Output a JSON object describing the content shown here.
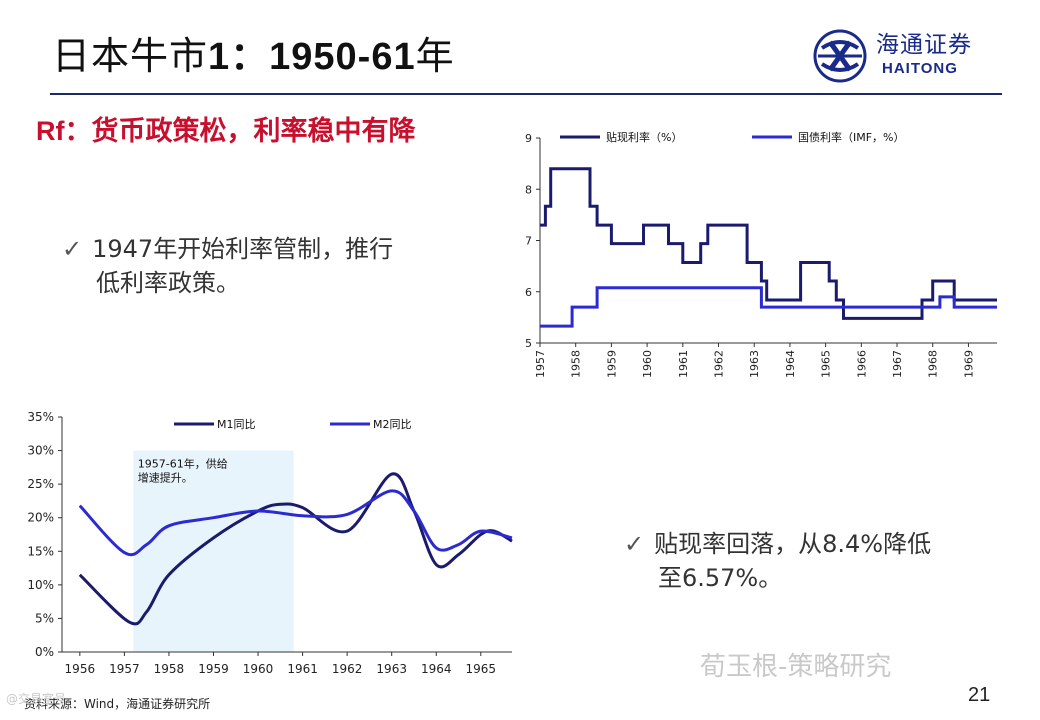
{
  "slide": {
    "title_cn": "日本牛市",
    "title_bold": "1：1950-61",
    "title_end": "年",
    "subtitle_rf": "Rf",
    "subtitle_rest": "：货币政策松，利率稳中有降",
    "bullet1_line1": "1947年开始利率管制，推行",
    "bullet1_line2": "低利率政策。",
    "bullet2_line1": "贴现率回落，从8.4%降低",
    "bullet2_line2": "至6.57%。",
    "check": "✓",
    "source": "资料来源：Wind，海通证券研究所",
    "page_number": "21",
    "watermark": "荀玉根-策略研究",
    "watermark_small": "@交易室号"
  },
  "logo": {
    "cn": "海通证券",
    "en": "HAITONG",
    "icon": "haitong-logo-icon",
    "color": "#1a2a8a"
  },
  "colors": {
    "accent_red": "#c8102e",
    "navy": "#1b1b6e",
    "blue": "#2b2bd0",
    "shade": "#e8f4fb"
  },
  "chart_data": [
    {
      "type": "line",
      "title": "",
      "x_ticks": [
        "1957",
        "1958",
        "1959",
        "1960",
        "1961",
        "1962",
        "1963",
        "1964",
        "1965",
        "1966",
        "1967",
        "1968",
        "1969"
      ],
      "xlim": [
        1957,
        1969.8
      ],
      "ylim": [
        5,
        9
      ],
      "y_ticks": [
        "5",
        "6",
        "7",
        "8",
        "9"
      ],
      "legend_position": "top",
      "series": [
        {
          "name": "贴现利率（%）",
          "color": "#1b1b6e",
          "points": [
            [
              1957.0,
              7.3
            ],
            [
              1957.15,
              7.3
            ],
            [
              1957.15,
              7.67
            ],
            [
              1957.3,
              7.67
            ],
            [
              1957.3,
              8.4
            ],
            [
              1958.4,
              8.4
            ],
            [
              1958.4,
              7.67
            ],
            [
              1958.6,
              7.67
            ],
            [
              1958.6,
              7.3
            ],
            [
              1959.0,
              7.3
            ],
            [
              1959.0,
              6.94
            ],
            [
              1959.9,
              6.94
            ],
            [
              1959.9,
              7.3
            ],
            [
              1960.6,
              7.3
            ],
            [
              1960.6,
              6.94
            ],
            [
              1961.0,
              6.94
            ],
            [
              1961.0,
              6.57
            ],
            [
              1961.5,
              6.57
            ],
            [
              1961.5,
              6.94
            ],
            [
              1961.7,
              6.94
            ],
            [
              1961.7,
              7.3
            ],
            [
              1962.8,
              7.3
            ],
            [
              1962.8,
              6.57
            ],
            [
              1963.2,
              6.57
            ],
            [
              1963.2,
              6.21
            ],
            [
              1963.35,
              6.21
            ],
            [
              1963.35,
              5.84
            ],
            [
              1964.3,
              5.84
            ],
            [
              1964.3,
              6.57
            ],
            [
              1965.1,
              6.57
            ],
            [
              1965.1,
              6.21
            ],
            [
              1965.3,
              6.21
            ],
            [
              1965.3,
              5.84
            ],
            [
              1965.5,
              5.84
            ],
            [
              1965.5,
              5.48
            ],
            [
              1967.7,
              5.48
            ],
            [
              1967.7,
              5.84
            ],
            [
              1968.0,
              5.84
            ],
            [
              1968.0,
              6.21
            ],
            [
              1968.6,
              6.21
            ],
            [
              1968.6,
              5.84
            ],
            [
              1969.8,
              5.84
            ]
          ]
        },
        {
          "name": "国债利率（IMF，%）",
          "color": "#2b2bd0",
          "points": [
            [
              1957.0,
              5.33
            ],
            [
              1957.9,
              5.33
            ],
            [
              1957.9,
              5.7
            ],
            [
              1958.6,
              5.7
            ],
            [
              1958.6,
              6.08
            ],
            [
              1963.2,
              6.08
            ],
            [
              1963.2,
              5.7
            ],
            [
              1968.2,
              5.7
            ],
            [
              1968.2,
              5.9
            ],
            [
              1968.6,
              5.9
            ],
            [
              1968.6,
              5.7
            ],
            [
              1969.8,
              5.7
            ]
          ]
        }
      ]
    },
    {
      "type": "line",
      "title": "",
      "x_ticks": [
        "1956",
        "1957",
        "1958",
        "1959",
        "1960",
        "1961",
        "1962",
        "1963",
        "1964",
        "1965"
      ],
      "xlim": [
        1955.6,
        1965.7
      ],
      "ylim": [
        0,
        35
      ],
      "y_ticks": [
        "0%",
        "5%",
        "10%",
        "15%",
        "20%",
        "25%",
        "30%",
        "35%"
      ],
      "legend_position": "top",
      "annotation": "1957-61年，供给增速提升。",
      "annotation_line1": "1957-61年，供给",
      "annotation_line2": "增速提升。",
      "shaded_range": [
        1957.2,
        1960.8
      ],
      "series": [
        {
          "name": "M1同比",
          "color": "#1b1b6e",
          "points": [
            [
              1956.0,
              11.5
            ],
            [
              1957.1,
              4.5
            ],
            [
              1957.5,
              6.0
            ],
            [
              1958.0,
              11.5
            ],
            [
              1959.0,
              17.0
            ],
            [
              1960.0,
              21.0
            ],
            [
              1960.5,
              22.0
            ],
            [
              1961.0,
              21.5
            ],
            [
              1962.0,
              18.0
            ],
            [
              1963.0,
              26.5
            ],
            [
              1963.5,
              21.0
            ],
            [
              1964.0,
              13.0
            ],
            [
              1964.5,
              14.5
            ],
            [
              1965.0,
              17.5
            ],
            [
              1965.3,
              18.0
            ],
            [
              1965.7,
              16.5
            ]
          ]
        },
        {
          "name": "M2同比",
          "color": "#2b2bd0",
          "points": [
            [
              1956.0,
              21.8
            ],
            [
              1957.0,
              14.8
            ],
            [
              1957.5,
              16.0
            ],
            [
              1958.0,
              18.8
            ],
            [
              1959.0,
              20.0
            ],
            [
              1960.0,
              21.0
            ],
            [
              1961.0,
              20.3
            ],
            [
              1962.0,
              20.5
            ],
            [
              1963.0,
              24.0
            ],
            [
              1963.5,
              21.0
            ],
            [
              1964.0,
              15.5
            ],
            [
              1964.5,
              16.0
            ],
            [
              1965.0,
              18.0
            ],
            [
              1965.7,
              17.0
            ]
          ]
        }
      ]
    }
  ]
}
